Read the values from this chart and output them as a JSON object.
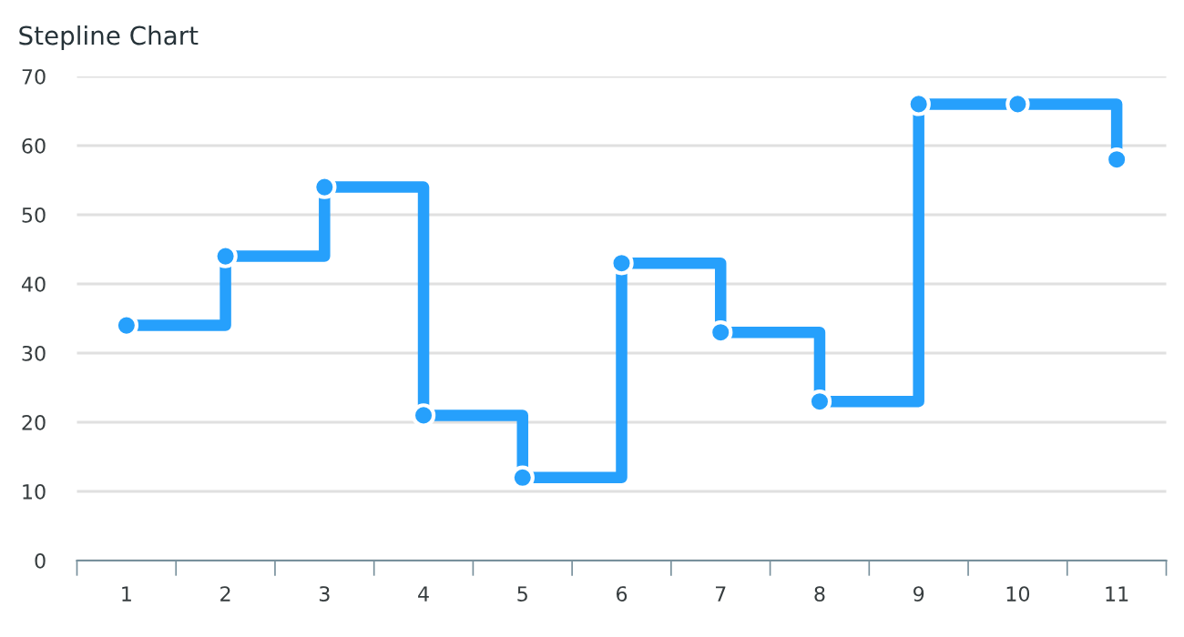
{
  "chart_data": {
    "type": "step",
    "title": "Stepline Chart",
    "categories": [
      "1",
      "2",
      "3",
      "4",
      "5",
      "6",
      "7",
      "8",
      "9",
      "10",
      "11"
    ],
    "series": [
      {
        "color": "#26a0fc",
        "values": [
          34,
          44,
          54,
          21,
          12,
          43,
          33,
          23,
          66,
          66,
          58
        ]
      }
    ],
    "ylim": [
      0,
      70
    ],
    "yticks": [
      0,
      10,
      20,
      30,
      40,
      50,
      60,
      70
    ],
    "grid": "y",
    "marker": "circle",
    "line_style": "solid"
  }
}
